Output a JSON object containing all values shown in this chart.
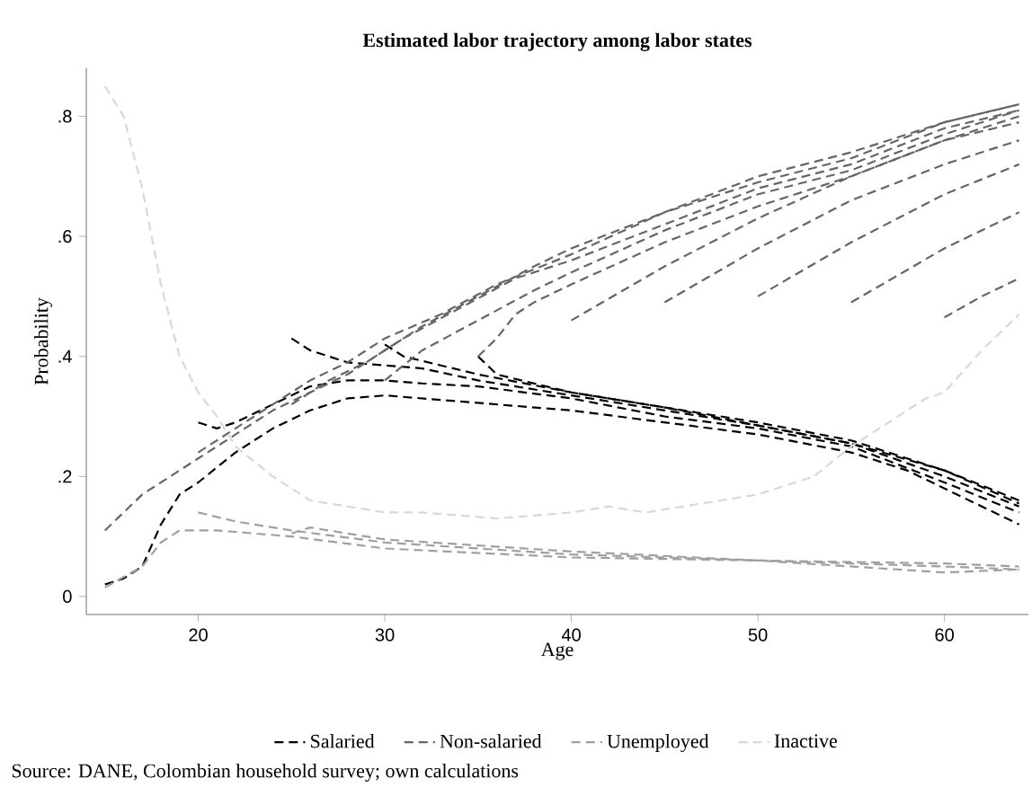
{
  "chart_data": {
    "type": "line",
    "title": "Estimated labor trajectory among labor states",
    "xlabel": "Age",
    "ylabel": "Probability",
    "xlim": [
      14,
      64.5
    ],
    "ylim": [
      -0.03,
      0.88
    ],
    "xticks": [
      20,
      30,
      40,
      50,
      60
    ],
    "yticks": [
      0,
      {
        "value": 0.2,
        "label": ".2"
      },
      {
        "value": 0.4,
        "label": ".4"
      },
      {
        "value": 0.6,
        "label": ".6"
      },
      {
        "value": 0.8,
        "label": ".8"
      }
    ],
    "legend": "bottom",
    "grid": false,
    "marker": "none",
    "line_style": "dashed",
    "annotations": [
      "Source: DANE, Colombian household survey; own calculations"
    ],
    "series": [
      {
        "name": "Salaried",
        "color": "#000000",
        "x": [
          15,
          16,
          17,
          18,
          19,
          20,
          22,
          24,
          26,
          28,
          30,
          32,
          34,
          36,
          40,
          45,
          50,
          55,
          58,
          60,
          62,
          64
        ],
        "values": [
          0.02,
          0.03,
          0.05,
          0.12,
          0.17,
          0.19,
          0.24,
          0.28,
          0.31,
          0.33,
          0.335,
          0.33,
          0.325,
          0.32,
          0.31,
          0.29,
          0.27,
          0.24,
          0.21,
          0.18,
          0.15,
          0.12
        ]
      },
      {
        "color": "#000000",
        "x": [
          20,
          21,
          22,
          24,
          26,
          28,
          30,
          32,
          35,
          40,
          45,
          50,
          55,
          60,
          64
        ],
        "values": [
          0.29,
          0.28,
          0.29,
          0.32,
          0.35,
          0.36,
          0.36,
          0.355,
          0.35,
          0.33,
          0.3,
          0.28,
          0.25,
          0.19,
          0.14
        ]
      },
      {
        "color": "#000000",
        "x": [
          25,
          26,
          28,
          30,
          32,
          35,
          40,
          45,
          50,
          55,
          60,
          64
        ],
        "values": [
          0.43,
          0.41,
          0.39,
          0.385,
          0.38,
          0.36,
          0.335,
          0.31,
          0.285,
          0.255,
          0.21,
          0.155
        ]
      },
      {
        "color": "#000000",
        "x": [
          30,
          31,
          33,
          35,
          40,
          45,
          50,
          55,
          60,
          64
        ],
        "values": [
          0.42,
          0.4,
          0.385,
          0.37,
          0.34,
          0.315,
          0.29,
          0.26,
          0.21,
          0.16
        ]
      },
      {
        "color": "#000000",
        "x": [
          35,
          36,
          38,
          40,
          45,
          50,
          55,
          60,
          64
        ],
        "values": [
          0.4,
          0.37,
          0.355,
          0.34,
          0.315,
          0.285,
          0.255,
          0.2,
          0.15
        ]
      },
      {
        "name": "Non-salaried",
        "color": "#666666",
        "x": [
          15,
          17,
          19,
          20,
          22,
          24,
          26,
          28,
          30,
          32,
          35,
          38,
          40,
          45,
          50,
          55,
          60,
          64
        ],
        "values": [
          0.11,
          0.17,
          0.21,
          0.23,
          0.27,
          0.31,
          0.34,
          0.37,
          0.41,
          0.45,
          0.5,
          0.55,
          0.58,
          0.64,
          0.7,
          0.74,
          0.79,
          0.82
        ]
      },
      {
        "color": "#666666",
        "x": [
          20,
          22,
          24,
          26,
          28,
          30,
          33,
          36,
          40,
          45,
          50,
          55,
          60,
          64
        ],
        "values": [
          0.24,
          0.28,
          0.32,
          0.36,
          0.39,
          0.43,
          0.47,
          0.52,
          0.57,
          0.64,
          0.69,
          0.73,
          0.79,
          0.82
        ]
      },
      {
        "color": "#666666",
        "x": [
          25,
          27,
          29,
          31,
          34,
          37,
          40,
          45,
          50,
          55,
          60,
          64
        ],
        "values": [
          0.32,
          0.36,
          0.39,
          0.43,
          0.48,
          0.53,
          0.56,
          0.62,
          0.68,
          0.72,
          0.78,
          0.81
        ]
      },
      {
        "color": "#666666",
        "x": [
          30,
          32,
          35,
          38,
          40,
          45,
          50,
          55,
          60,
          64
        ],
        "values": [
          0.36,
          0.41,
          0.46,
          0.51,
          0.54,
          0.61,
          0.67,
          0.71,
          0.77,
          0.81
        ]
      },
      {
        "color": "#666666",
        "x": [
          35,
          36,
          37,
          38,
          40,
          45,
          50,
          55,
          60,
          64
        ],
        "values": [
          0.4,
          0.43,
          0.47,
          0.49,
          0.52,
          0.59,
          0.65,
          0.7,
          0.76,
          0.8
        ]
      },
      {
        "color": "#666666",
        "x": [
          40,
          45,
          50,
          55,
          60,
          64
        ],
        "values": [
          0.46,
          0.55,
          0.63,
          0.7,
          0.76,
          0.79
        ]
      },
      {
        "color": "#666666",
        "x": [
          45,
          50,
          55,
          60,
          64
        ],
        "values": [
          0.49,
          0.58,
          0.66,
          0.72,
          0.76
        ]
      },
      {
        "color": "#666666",
        "x": [
          50,
          55,
          60,
          64
        ],
        "values": [
          0.5,
          0.59,
          0.67,
          0.72
        ]
      },
      {
        "color": "#666666",
        "x": [
          55,
          60,
          64
        ],
        "values": [
          0.49,
          0.58,
          0.64
        ]
      },
      {
        "color": "#666666",
        "x": [
          60,
          62,
          64
        ],
        "values": [
          0.465,
          0.5,
          0.53
        ]
      },
      {
        "name": "Unemployed",
        "color": "#a0a0a0",
        "x": [
          15,
          17,
          18,
          19,
          21,
          25,
          30,
          40,
          50,
          60,
          64
        ],
        "values": [
          0.015,
          0.05,
          0.09,
          0.11,
          0.11,
          0.1,
          0.08,
          0.065,
          0.06,
          0.05,
          0.045
        ]
      },
      {
        "color": "#a0a0a0",
        "x": [
          20,
          22,
          25,
          30,
          40,
          50,
          60,
          64
        ],
        "values": [
          0.14,
          0.125,
          0.11,
          0.09,
          0.07,
          0.06,
          0.055,
          0.05
        ]
      },
      {
        "color": "#a0a0a0",
        "x": [
          25,
          26,
          30,
          40,
          50,
          60,
          64
        ],
        "values": [
          0.105,
          0.115,
          0.095,
          0.075,
          0.06,
          0.04,
          0.045
        ]
      },
      {
        "name": "Inactive",
        "color": "#d8d8d8",
        "x": [
          15,
          16,
          17,
          18,
          19,
          20,
          21,
          22,
          24,
          26,
          28,
          30,
          32,
          34,
          36,
          40,
          42,
          44,
          46,
          48,
          50,
          52,
          53,
          55,
          57,
          59,
          60,
          62,
          64
        ],
        "values": [
          0.85,
          0.8,
          0.68,
          0.52,
          0.4,
          0.34,
          0.3,
          0.25,
          0.2,
          0.16,
          0.15,
          0.14,
          0.14,
          0.135,
          0.13,
          0.14,
          0.15,
          0.14,
          0.15,
          0.16,
          0.17,
          0.19,
          0.2,
          0.25,
          0.29,
          0.33,
          0.34,
          0.41,
          0.47
        ]
      }
    ]
  }
}
